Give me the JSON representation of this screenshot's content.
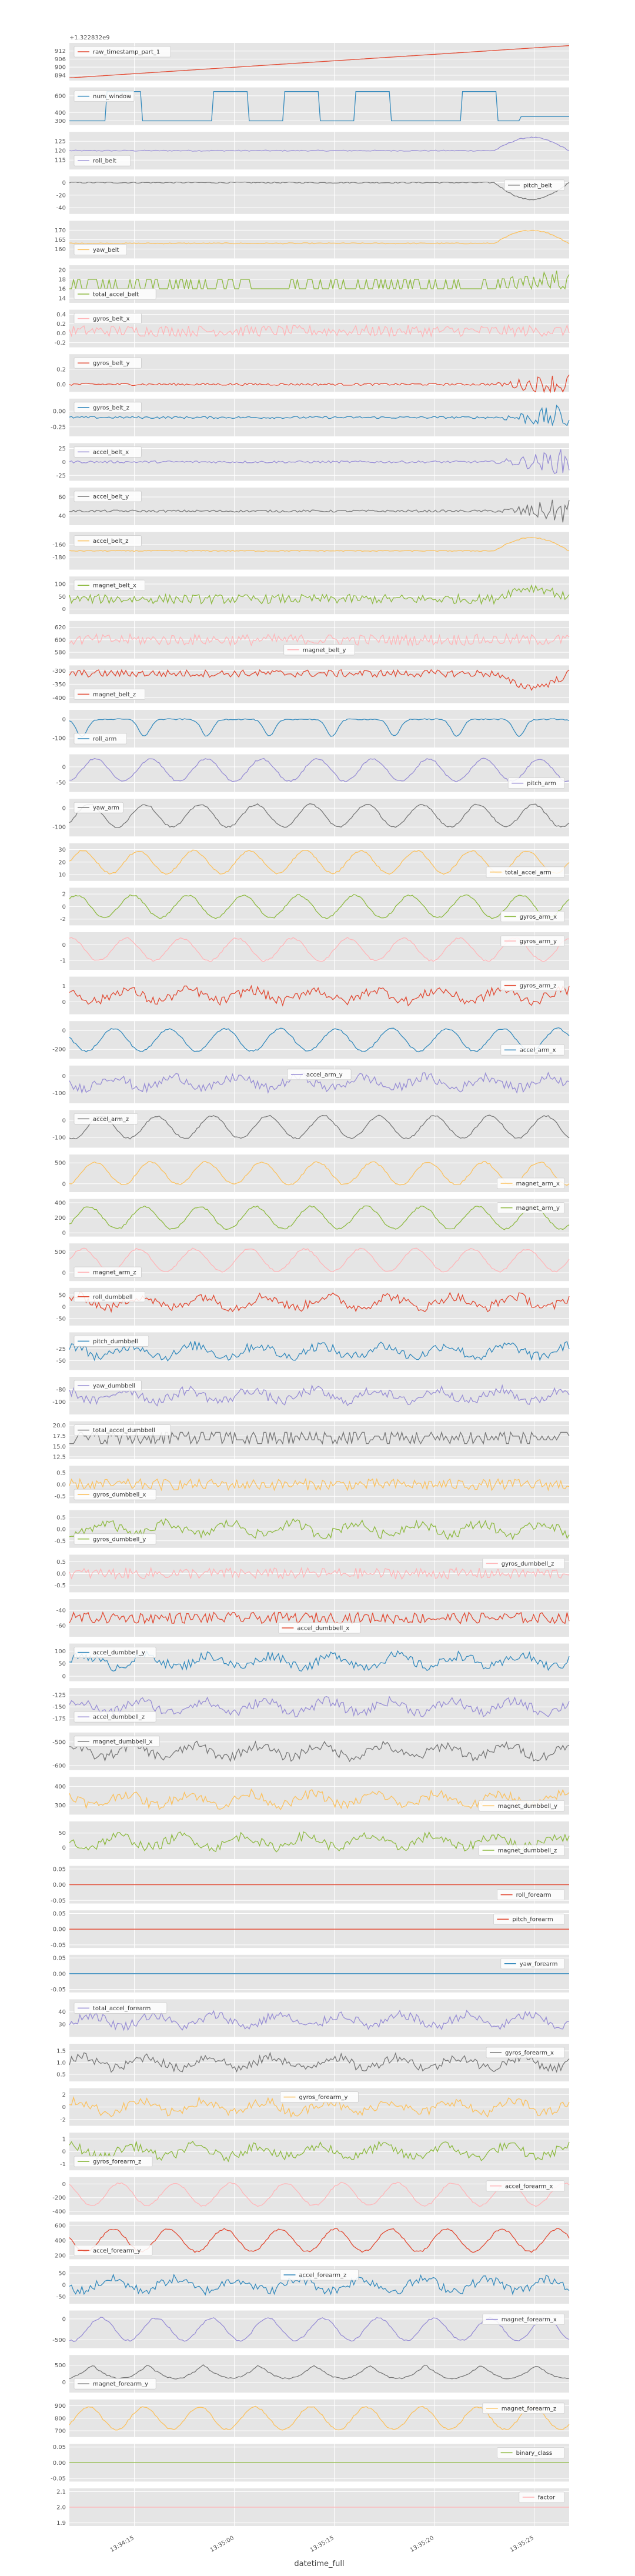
{
  "chart_data": {
    "type": "line",
    "layout": "stacked-subplots-shared-x",
    "xlabel": "datetime_full",
    "x_ticks": [
      "13:34:15",
      "13:35:00",
      "13:35:15",
      "13:35:20",
      "13:35:25"
    ],
    "grid": true,
    "legend_placement": "varies per subplot",
    "colors": [
      "#E24A33",
      "#348ABD",
      "#988ED5",
      "#777777",
      "#FBC15E",
      "#8EBA42",
      "#FFB5B8"
    ],
    "subplots": [
      {
        "name": "raw_timestamp_part_1",
        "color": "#E24A33",
        "legend": "upper left",
        "offset_label": "+1.322832e9",
        "yticks": [
          "912",
          "906",
          "900",
          "894"
        ],
        "ylim": [
          890,
          918
        ],
        "pattern": "ramp",
        "start": 892,
        "end": 916
      },
      {
        "name": "num_window",
        "color": "#348ABD",
        "legend": "upper left",
        "yticks": [
          "600",
          "400",
          "300"
        ],
        "ylim": [
          250,
          700
        ],
        "pattern": "step",
        "levels": [
          300,
          650
        ]
      },
      {
        "name": "roll_belt",
        "color": "#988ED5",
        "legend": "lower left",
        "yticks": [
          "125",
          "120",
          "115"
        ],
        "ylim": [
          110,
          130
        ],
        "pattern": "flat_late_bump",
        "base": 120
      },
      {
        "name": "pitch_belt",
        "color": "#777777",
        "legend": "upper right",
        "yticks": [
          "0",
          "-20",
          "-40"
        ],
        "ylim": [
          -50,
          10
        ],
        "pattern": "flat_late_dip",
        "base": 0
      },
      {
        "name": "yaw_belt",
        "color": "#FBC15E",
        "legend": "lower left",
        "yticks": [
          "170",
          "165",
          "160"
        ],
        "ylim": [
          155,
          175
        ],
        "pattern": "flat_late_bump",
        "base": 163
      },
      {
        "name": "total_accel_belt",
        "color": "#8EBA42",
        "legend": "lower left",
        "yticks": [
          "20",
          "18",
          "16",
          "14"
        ],
        "ylim": [
          13,
          21
        ],
        "pattern": "spiky",
        "base": 16
      },
      {
        "name": "gyros_belt_x",
        "color": "#FFB5B8",
        "legend": "upper left",
        "yticks": [
          "0.4",
          "0.2",
          "0.0",
          "-0.2"
        ],
        "ylim": [
          -0.3,
          0.5
        ],
        "pattern": "noise",
        "base": 0.05
      },
      {
        "name": "gyros_belt_y",
        "color": "#E24A33",
        "legend": "upper left",
        "yticks": [
          "0.2",
          "0.0"
        ],
        "ylim": [
          -0.1,
          0.4
        ],
        "pattern": "flat_late_burst",
        "base": 0.0
      },
      {
        "name": "gyros_belt_z",
        "color": "#348ABD",
        "legend": "upper left",
        "yticks": [
          "0.00",
          "-0.25"
        ],
        "ylim": [
          -0.4,
          0.2
        ],
        "pattern": "flat_late_burst",
        "base": -0.1
      },
      {
        "name": "accel_belt_x",
        "color": "#988ED5",
        "legend": "upper left",
        "yticks": [
          "25",
          "0",
          "-25"
        ],
        "ylim": [
          -35,
          35
        ],
        "pattern": "flat_late_burst",
        "base": 0
      },
      {
        "name": "accel_belt_y",
        "color": "#777777",
        "legend": "upper left",
        "yticks": [
          "60",
          "40"
        ],
        "ylim": [
          30,
          70
        ],
        "pattern": "flat_late_burst",
        "base": 45
      },
      {
        "name": "accel_belt_z",
        "color": "#FBC15E",
        "legend": "upper left",
        "yticks": [
          "-160",
          "-180"
        ],
        "ylim": [
          -200,
          -140
        ],
        "pattern": "flat_late_bump",
        "base": -170
      },
      {
        "name": "magnet_belt_x",
        "color": "#8EBA42",
        "legend": "upper left",
        "yticks": [
          "100",
          "50",
          "0"
        ],
        "ylim": [
          -20,
          130
        ],
        "pattern": "noise_late_bump",
        "base": 40
      },
      {
        "name": "magnet_belt_y",
        "color": "#FFB5B8",
        "legend": "lower center",
        "yticks": [
          "620",
          "600",
          "580"
        ],
        "ylim": [
          570,
          630
        ],
        "pattern": "noise",
        "base": 600
      },
      {
        "name": "magnet_belt_z",
        "color": "#E24A33",
        "legend": "lower left",
        "yticks": [
          "-300",
          "-350",
          "-400"
        ],
        "ylim": [
          -420,
          -280
        ],
        "pattern": "noise_late_dip",
        "base": -310
      },
      {
        "name": "roll_arm",
        "color": "#348ABD",
        "legend": "lower left",
        "yticks": [
          "0",
          "-100"
        ],
        "ylim": [
          -150,
          50
        ],
        "pattern": "periodic_dips",
        "base": 0
      },
      {
        "name": "pitch_arm",
        "color": "#988ED5",
        "legend": "lower right",
        "yticks": [
          "0",
          "-50"
        ],
        "ylim": [
          -80,
          40
        ],
        "pattern": "wave",
        "base": -10
      },
      {
        "name": "yaw_arm",
        "color": "#777777",
        "legend": "upper left",
        "yticks": [
          "0",
          "-100"
        ],
        "ylim": [
          -150,
          50
        ],
        "pattern": "wave",
        "base": -40
      },
      {
        "name": "total_accel_arm",
        "color": "#FBC15E",
        "legend": "lower right",
        "yticks": [
          "30",
          "20",
          "10"
        ],
        "ylim": [
          5,
          35
        ],
        "pattern": "wave",
        "base": 20
      },
      {
        "name": "gyros_arm_x",
        "color": "#8EBA42",
        "legend": "lower right",
        "yticks": [
          "2",
          "0",
          "-2"
        ],
        "ylim": [
          -3,
          3
        ],
        "pattern": "wave",
        "base": 0
      },
      {
        "name": "gyros_arm_y",
        "color": "#FFB5B8",
        "legend": "upper right",
        "yticks": [
          "0",
          "-1"
        ],
        "ylim": [
          -1.6,
          0.8
        ],
        "pattern": "wave",
        "base": -0.3
      },
      {
        "name": "gyros_arm_z",
        "color": "#E24A33",
        "legend": "upper right",
        "yticks": [
          "1",
          "0"
        ],
        "ylim": [
          -0.8,
          1.6
        ],
        "pattern": "noise_wave",
        "base": 0.4
      },
      {
        "name": "accel_arm_x",
        "color": "#348ABD",
        "legend": "lower right",
        "yticks": [
          "0",
          "-200"
        ],
        "ylim": [
          -300,
          100
        ],
        "pattern": "wave",
        "base": -100
      },
      {
        "name": "accel_arm_y",
        "color": "#988ED5",
        "legend": "upper center",
        "yticks": [
          "0",
          "-100"
        ],
        "ylim": [
          -160,
          60
        ],
        "pattern": "noise_wave",
        "base": -40
      },
      {
        "name": "accel_arm_z",
        "color": "#777777",
        "legend": "upper left",
        "yticks": [
          "0",
          "-100"
        ],
        "ylim": [
          -160,
          60
        ],
        "pattern": "wave",
        "base": -40
      },
      {
        "name": "magnet_arm_x",
        "color": "#FBC15E",
        "legend": "lower right",
        "yticks": [
          "500",
          "0"
        ],
        "ylim": [
          -200,
          700
        ],
        "pattern": "wave",
        "base": 250
      },
      {
        "name": "magnet_arm_y",
        "color": "#8EBA42",
        "legend": "upper right",
        "yticks": [
          "400",
          "200",
          "0"
        ],
        "ylim": [
          -50,
          450
        ],
        "pattern": "wave",
        "base": 200
      },
      {
        "name": "magnet_arm_z",
        "color": "#FFB5B8",
        "legend": "lower left",
        "yticks": [
          "500",
          "0"
        ],
        "ylim": [
          -200,
          700
        ],
        "pattern": "wave",
        "base": 300
      },
      {
        "name": "roll_dumbbell",
        "color": "#E24A33",
        "legend": "upper left",
        "yticks": [
          "50",
          "0",
          "-50"
        ],
        "ylim": [
          -80,
          80
        ],
        "pattern": "noise_wave",
        "base": 20
      },
      {
        "name": "pitch_dumbbell",
        "color": "#348ABD",
        "legend": "upper left",
        "yticks": [
          "-25",
          "-50"
        ],
        "ylim": [
          -70,
          10
        ],
        "pattern": "noise_wave",
        "base": -30
      },
      {
        "name": "yaw_dumbbell",
        "color": "#988ED5",
        "legend": "upper left",
        "yticks": [
          "-80",
          "-100"
        ],
        "ylim": [
          -120,
          -60
        ],
        "pattern": "noise_wave",
        "base": -90
      },
      {
        "name": "total_accel_dumbbell",
        "color": "#777777",
        "legend": "upper left",
        "yticks": [
          "20.0",
          "17.5",
          "15.0",
          "12.5"
        ],
        "ylim": [
          12,
          21
        ],
        "pattern": "step_noise",
        "base": 17
      },
      {
        "name": "gyros_dumbbell_x",
        "color": "#FBC15E",
        "legend": "lower left",
        "yticks": [
          "0.5",
          "0.0",
          "-0.5"
        ],
        "ylim": [
          -0.8,
          0.8
        ],
        "pattern": "noise",
        "base": 0
      },
      {
        "name": "gyros_dumbbell_y",
        "color": "#8EBA42",
        "legend": "lower left",
        "yticks": [
          "0.5",
          "0.0",
          "-0.5"
        ],
        "ylim": [
          -0.8,
          0.8
        ],
        "pattern": "noise_wave",
        "base": 0
      },
      {
        "name": "gyros_dumbbell_z",
        "color": "#FFB5B8",
        "legend": "upper right",
        "yticks": [
          "0.5",
          "0.0",
          "-0.5"
        ],
        "ylim": [
          -0.8,
          0.8
        ],
        "pattern": "noise",
        "base": 0
      },
      {
        "name": "accel_dumbbell_x",
        "color": "#E24A33",
        "legend": "lower center",
        "yticks": [
          "-40",
          "-60"
        ],
        "ylim": [
          -75,
          -25
        ],
        "pattern": "noise",
        "base": -50
      },
      {
        "name": "accel_dumbbell_y",
        "color": "#348ABD",
        "legend": "upper left",
        "yticks": [
          "100",
          "50",
          "0"
        ],
        "ylim": [
          -20,
          130
        ],
        "pattern": "noise_wave",
        "base": 60
      },
      {
        "name": "accel_dumbbell_z",
        "color": "#988ED5",
        "legend": "lower left",
        "yticks": [
          "-125",
          "-150",
          "-175"
        ],
        "ylim": [
          -190,
          -110
        ],
        "pattern": "noise_wave",
        "base": -150
      },
      {
        "name": "magnet_dumbbell_x",
        "color": "#777777",
        "legend": "upper left",
        "yticks": [
          "-500",
          "-600"
        ],
        "ylim": [
          -620,
          -460
        ],
        "pattern": "noise_wave",
        "base": -540
      },
      {
        "name": "magnet_dumbbell_y",
        "color": "#FBC15E",
        "legend": "lower right",
        "yticks": [
          "400",
          "300"
        ],
        "ylim": [
          250,
          450
        ],
        "pattern": "noise_wave",
        "base": 330
      },
      {
        "name": "magnet_dumbbell_z",
        "color": "#8EBA42",
        "legend": "lower right",
        "yticks": [
          "50",
          "0"
        ],
        "ylim": [
          -40,
          90
        ],
        "pattern": "noise_wave",
        "base": 20
      },
      {
        "name": "roll_forearm",
        "color": "#E24A33",
        "legend": "lower right",
        "yticks": [
          "0.05",
          "0.00",
          "-0.05"
        ],
        "ylim": [
          -0.06,
          0.06
        ],
        "pattern": "constant",
        "base": 0
      },
      {
        "name": "pitch_forearm",
        "color": "#E24A33",
        "legend": "upper right",
        "yticks": [
          "0.05",
          "0.00",
          "-0.05"
        ],
        "ylim": [
          -0.06,
          0.06
        ],
        "pattern": "constant",
        "base": 0
      },
      {
        "name": "yaw_forearm",
        "color": "#348ABD",
        "legend": "upper right",
        "yticks": [
          "0.05",
          "0.00",
          "-0.05"
        ],
        "ylim": [
          -0.06,
          0.06
        ],
        "pattern": "constant",
        "base": 0
      },
      {
        "name": "total_accel_forearm",
        "color": "#988ED5",
        "legend": "upper left",
        "yticks": [
          "40",
          "30"
        ],
        "ylim": [
          20,
          50
        ],
        "pattern": "noise_wave",
        "base": 33
      },
      {
        "name": "gyros_forearm_x",
        "color": "#777777",
        "legend": "upper right",
        "yticks": [
          "1.5",
          "1.0",
          "0.5"
        ],
        "ylim": [
          0.2,
          1.8
        ],
        "pattern": "noise_wave",
        "base": 1.0
      },
      {
        "name": "gyros_forearm_y",
        "color": "#FBC15E",
        "legend": "upper center",
        "yticks": [
          "2",
          "0",
          "-2"
        ],
        "ylim": [
          -3,
          3
        ],
        "pattern": "noise_wave",
        "base": 0
      },
      {
        "name": "gyros_forearm_z",
        "color": "#8EBA42",
        "legend": "lower left",
        "yticks": [
          "1",
          "0",
          "-1"
        ],
        "ylim": [
          -1.5,
          1.5
        ],
        "pattern": "noise_wave",
        "base": 0
      },
      {
        "name": "accel_forearm_x",
        "color": "#FFB5B8",
        "legend": "upper right",
        "yticks": [
          "0",
          "-200",
          "-400"
        ],
        "ylim": [
          -450,
          100
        ],
        "pattern": "wave",
        "base": -150
      },
      {
        "name": "accel_forearm_y",
        "color": "#E24A33",
        "legend": "lower left",
        "yticks": [
          "600",
          "400",
          "200"
        ],
        "ylim": [
          150,
          650
        ],
        "pattern": "wave",
        "base": 400
      },
      {
        "name": "accel_forearm_z",
        "color": "#348ABD",
        "legend": "upper center",
        "yticks": [
          "50",
          "0",
          "-50"
        ],
        "ylim": [
          -80,
          80
        ],
        "pattern": "noise_wave",
        "base": 0
      },
      {
        "name": "magnet_forearm_x",
        "color": "#988ED5",
        "legend": "upper right",
        "yticks": [
          "0",
          "-500"
        ],
        "ylim": [
          -700,
          200
        ],
        "pattern": "wave",
        "base": -250
      },
      {
        "name": "magnet_forearm_y",
        "color": "#777777",
        "legend": "lower left",
        "yticks": [
          "500",
          "0"
        ],
        "ylim": [
          -300,
          800
        ],
        "pattern": "wave_high",
        "base": 500
      },
      {
        "name": "magnet_forearm_z",
        "color": "#FBC15E",
        "legend": "upper right",
        "yticks": [
          "900",
          "800",
          "700"
        ],
        "ylim": [
          650,
          950
        ],
        "pattern": "wave",
        "base": 800
      },
      {
        "name": "binary_class",
        "color": "#8EBA42",
        "legend": "upper right",
        "yticks": [
          "0.05",
          "0.00",
          "-0.05"
        ],
        "ylim": [
          -0.06,
          0.06
        ],
        "pattern": "constant",
        "base": 0
      },
      {
        "name": "factor",
        "color": "#FFB5B8",
        "legend": "upper right",
        "yticks": [
          "2.1",
          "2.0",
          "1.9"
        ],
        "ylim": [
          1.88,
          2.12
        ],
        "pattern": "constant_flat_axis",
        "base": 2.0
      }
    ]
  }
}
